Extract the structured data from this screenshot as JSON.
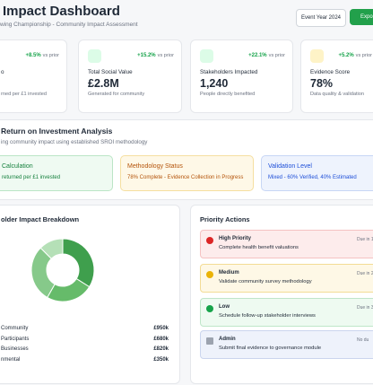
{
  "header": {
    "title": "Impact Dashboard",
    "subtitle": "wing Championship - Community Impact Assessment",
    "buttons": [
      "Event Year 2024",
      "Expo"
    ]
  },
  "cards": [
    {
      "change": "+8.5%",
      "note": "vs prior",
      "label": "o",
      "desc": "rned per £1 invested"
    },
    {
      "change": "+15.2%",
      "note": "vs prior",
      "label": "Total Social Value",
      "value": "£2.8M",
      "desc": "Generated for community"
    },
    {
      "change": "+22.1%",
      "note": "vs prior",
      "label": "Stakeholders Impacted",
      "value": "1,240",
      "desc": "People directly benefited"
    },
    {
      "change": "+5.2%",
      "note": "vs prior",
      "label": "Evidence Score",
      "value": "78%",
      "desc": "Data quality & validation"
    }
  ],
  "roi": {
    "title": "Return on Investment Analysis",
    "subtitle": "ing community impact using established SROI methodology",
    "boxes": [
      {
        "heading": "Calculation",
        "text": "returned per £1 invested"
      },
      {
        "heading": "Methodology Status",
        "text": "78% Complete - Evidence Collection in Progress"
      },
      {
        "heading": "Validation Level",
        "text": "Mixed - 60% Verified, 40% Estimated"
      }
    ]
  },
  "breakdown": {
    "title": "older Impact Breakdown",
    "type": "donut",
    "categories": [
      "Community",
      "Participants",
      "Businesses",
      "nmental"
    ],
    "values": [
      950,
      680,
      820,
      350
    ],
    "value_labels": [
      "£950k",
      "£680k",
      "£820k",
      "£350k"
    ],
    "colors": [
      "#3f9f4d",
      "#66bb6a",
      "#86c98a",
      "#b5e0b7"
    ]
  },
  "actions": {
    "title": "Priority Actions",
    "items": [
      {
        "level": "High Priority",
        "text": "Complete health benefit valuations",
        "due": "Due in 1"
      },
      {
        "level": "Medium",
        "text": "Validate community survey methodology",
        "due": "Due in 2"
      },
      {
        "level": "Low",
        "text": "Schedule follow-up stakeholder interviews",
        "due": "Due in 3"
      },
      {
        "level": "Admin",
        "text": "Submit final evidence to governance module",
        "due": "No du"
      }
    ]
  }
}
